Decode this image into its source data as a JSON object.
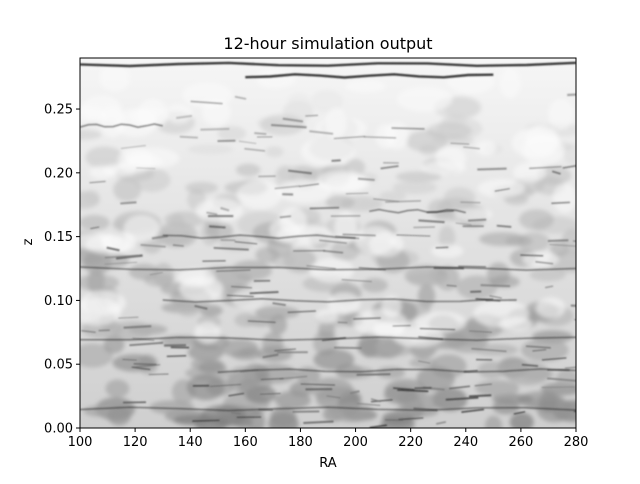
{
  "chart_data": {
    "type": "heatmap",
    "title": "12-hour simulation output",
    "xlabel": "RA",
    "ylabel": "z",
    "xlim": [
      100,
      280
    ],
    "ylim": [
      0.0,
      0.29
    ],
    "x_ticks": [
      100,
      120,
      140,
      160,
      180,
      200,
      220,
      240,
      260,
      280
    ],
    "x_tick_labels": [
      "100",
      "120",
      "140",
      "160",
      "180",
      "200",
      "220",
      "240",
      "260",
      "280"
    ],
    "y_ticks": [
      0.0,
      0.05,
      0.1,
      0.15,
      0.2,
      0.25
    ],
    "y_tick_labels": [
      "0.00",
      "0.05",
      "0.10",
      "0.15",
      "0.20",
      "0.25"
    ],
    "colormap": "grayscale (white = low density, black = high density)",
    "grid": false,
    "legend": "none",
    "features": [
      {
        "kind": "filament",
        "ra_start": 100,
        "ra_end": 280,
        "z": 0.285
      },
      {
        "kind": "filament",
        "ra_start": 160,
        "ra_end": 250,
        "z": 0.276
      },
      {
        "kind": "filament",
        "ra_start": 100,
        "ra_end": 130,
        "z": 0.237
      },
      {
        "kind": "filament",
        "ra_start": 205,
        "ra_end": 240,
        "z": 0.17
      },
      {
        "kind": "filament",
        "ra_start": 130,
        "ra_end": 200,
        "z": 0.15
      },
      {
        "kind": "filament",
        "ra_start": 100,
        "ra_end": 280,
        "z": 0.125
      },
      {
        "kind": "filament",
        "ra_start": 130,
        "ra_end": 250,
        "z": 0.1
      },
      {
        "kind": "filament",
        "ra_start": 100,
        "ra_end": 280,
        "z": 0.07
      },
      {
        "kind": "filament",
        "ra_start": 150,
        "ra_end": 280,
        "z": 0.045
      },
      {
        "kind": "filament",
        "ra_start": 100,
        "ra_end": 280,
        "z": 0.015
      }
    ]
  }
}
